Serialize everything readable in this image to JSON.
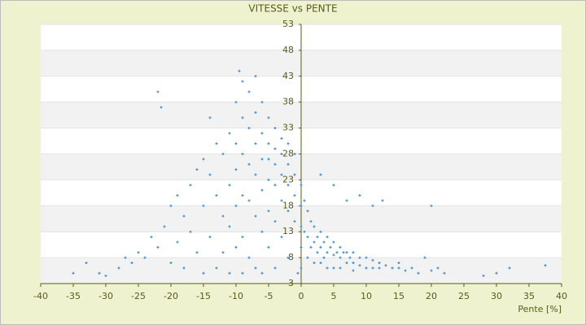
{
  "chart_data": {
    "type": "scatter",
    "title": "VITESSE vs PENTE",
    "x_label": "Pente [%]",
    "color": "#3d8fd9",
    "xlim": [
      -40,
      40
    ],
    "xticks": [
      -40,
      -35,
      -30,
      -25,
      -20,
      -15,
      -10,
      -5,
      0,
      5,
      10,
      15,
      20,
      25,
      30,
      35,
      40
    ],
    "ylim": [
      3,
      53
    ],
    "yticks": [
      3,
      8,
      13,
      18,
      23,
      28,
      33,
      38,
      43,
      48,
      53
    ],
    "grid": true,
    "x": [
      -35,
      -33,
      -31,
      -30,
      -28,
      -27,
      -26,
      -25,
      -24,
      -23,
      -22,
      -22,
      -21.5,
      -21,
      -20,
      -20,
      -19,
      -19,
      -18,
      -18,
      -17,
      -17,
      -16,
      -16,
      -15,
      -15,
      -15,
      -14,
      -14,
      -14,
      -13,
      -13,
      -13,
      -12,
      -12,
      -12,
      -11,
      -11,
      -11,
      -11,
      -10,
      -10,
      -10,
      -10,
      -10,
      -9.5,
      -9,
      -9,
      -9,
      -9,
      -9,
      -9,
      -8,
      -8,
      -8,
      -8,
      -8,
      -7,
      -7,
      -7,
      -7,
      -7,
      -7,
      -6,
      -6,
      -6,
      -6,
      -6,
      -6,
      -5,
      -5,
      -5,
      -5,
      -5,
      -5,
      -4,
      -4,
      -4,
      -4,
      -4,
      -4,
      -3,
      -3,
      -3,
      -3,
      -3,
      -2,
      -2,
      -2,
      -2,
      -2,
      -1,
      -1,
      -1,
      -1,
      -0.5,
      0,
      0,
      0,
      0,
      0,
      0.5,
      0.5,
      1,
      1,
      1,
      1.5,
      1.5,
      2,
      2,
      2,
      2.5,
      2.5,
      3,
      3,
      3,
      3.5,
      3.5,
      4,
      4,
      4,
      4.5,
      5,
      5,
      5,
      5.5,
      6,
      6,
      6,
      6.5,
      7,
      7,
      7.5,
      8,
      8,
      8,
      9,
      9,
      10,
      10,
      11,
      11,
      12,
      12,
      13,
      14,
      15,
      15,
      16,
      17,
      18,
      19,
      20,
      20,
      21,
      22,
      28,
      30,
      32,
      37.5,
      7,
      5,
      3,
      9,
      11,
      12.5
    ],
    "values": [
      5,
      7,
      5,
      4.5,
      6,
      8,
      7,
      9,
      8,
      12,
      10,
      40,
      37,
      14,
      18,
      7,
      20,
      11,
      16,
      6,
      22,
      13,
      25,
      9,
      27,
      18,
      5,
      35,
      24,
      12,
      30,
      20,
      6,
      28,
      16,
      9,
      32,
      22,
      14,
      5,
      38,
      30,
      25,
      18,
      10,
      44,
      42,
      35,
      28,
      20,
      12,
      5,
      40,
      33,
      26,
      19,
      8,
      43,
      36,
      30,
      24,
      16,
      6,
      38,
      32,
      27,
      21,
      13,
      5,
      35,
      30,
      27,
      23,
      17,
      10,
      33,
      29,
      26,
      22,
      15,
      6,
      31,
      28,
      24,
      19,
      12,
      30,
      26,
      22,
      17,
      8,
      28,
      24,
      20,
      15,
      5,
      22,
      18,
      14,
      10,
      6,
      19,
      13,
      17,
      12,
      8,
      15,
      10,
      14,
      11,
      7,
      12,
      9,
      13,
      10,
      7,
      11,
      8,
      12,
      9,
      6,
      10,
      11,
      8.5,
      6,
      9,
      10,
      8,
      6,
      9,
      9,
      7,
      8,
      9,
      7,
      5.5,
      8,
      6.5,
      8,
      6,
      7.5,
      6,
      7,
      6,
      6.5,
      6,
      7,
      6,
      5.5,
      6,
      5,
      8,
      5.5,
      18,
      6,
      5,
      4.5,
      5,
      6,
      6.5,
      19,
      22,
      24,
      20,
      18,
      19
    ]
  }
}
